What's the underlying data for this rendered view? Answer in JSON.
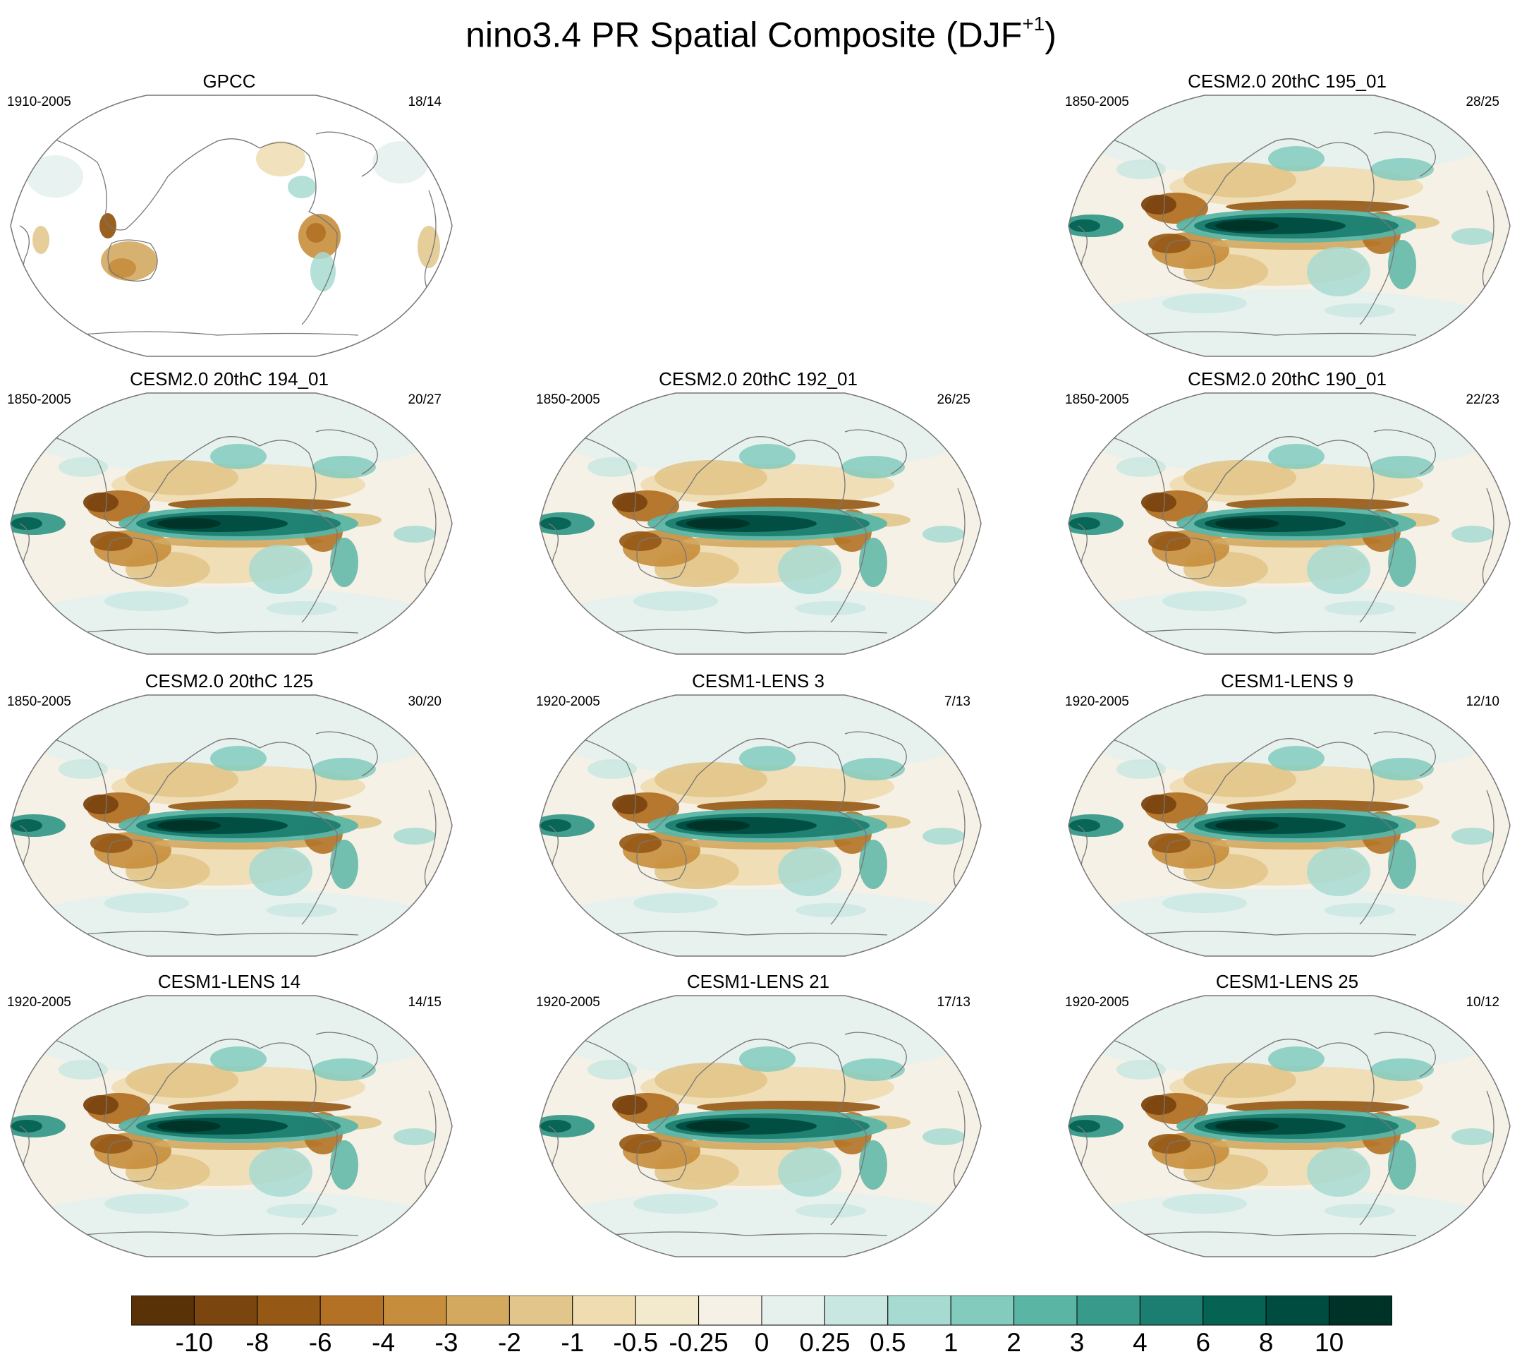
{
  "title": {
    "main": "nino3.4 PR Spatial Composite (DJF",
    "superscript": "+1",
    "close": ")"
  },
  "panels": [
    {
      "title": "GPCC",
      "years": "1910-2005",
      "count": "18/14",
      "observed": true
    },
    {
      "title": "CESM2.0 20thC 195_01",
      "years": "1850-2005",
      "count": "28/25"
    },
    {
      "title": "CESM2.0 20thC 194_01",
      "years": "1850-2005",
      "count": "20/27"
    },
    {
      "title": "CESM2.0 20thC 192_01",
      "years": "1850-2005",
      "count": "26/25"
    },
    {
      "title": "CESM2.0 20thC 190_01",
      "years": "1850-2005",
      "count": "22/23"
    },
    {
      "title": "CESM2.0 20thC 125",
      "years": "1850-2005",
      "count": "30/20"
    },
    {
      "title": "CESM1-LENS 3",
      "years": "1920-2005",
      "count": "7/13"
    },
    {
      "title": "CESM1-LENS 9",
      "years": "1920-2005",
      "count": "12/10"
    },
    {
      "title": "CESM1-LENS 14",
      "years": "1920-2005",
      "count": "14/15"
    },
    {
      "title": "CESM1-LENS 21",
      "years": "1920-2005",
      "count": "17/13"
    },
    {
      "title": "CESM1-LENS 25",
      "years": "1920-2005",
      "count": "10/12"
    }
  ],
  "colorbar": {
    "labels": [
      "-10",
      "-8",
      "-6",
      "-4",
      "-3",
      "-2",
      "-1",
      "-0.5",
      "-0.25",
      "0",
      "0.25",
      "0.5",
      "1",
      "2",
      "3",
      "4",
      "6",
      "8",
      "10"
    ],
    "colors": [
      "#5a3208",
      "#7b4510",
      "#955815",
      "#b27124",
      "#c68e3c",
      "#d3a960",
      "#e2c58a",
      "#efdcb1",
      "#f3e9cd",
      "#f5f1e6",
      "#e6f1ee",
      "#c9e7e1",
      "#a7dbd1",
      "#82cbbd",
      "#5bb5a5",
      "#389a8a",
      "#1c7e70",
      "#056353",
      "#004c40",
      "#003328"
    ]
  },
  "chart_data": {
    "type": "heatmap",
    "variable": "PR",
    "index": "nino3.4",
    "season": "DJF+1",
    "panels": [
      {
        "title": "GPCC",
        "period": "1910-2005",
        "events": "18/14"
      },
      {
        "title": "CESM2.0 20thC 195_01",
        "period": "1850-2005",
        "events": "28/25"
      },
      {
        "title": "CESM2.0 20thC 194_01",
        "period": "1850-2005",
        "events": "20/27"
      },
      {
        "title": "CESM2.0 20thC 192_01",
        "period": "1850-2005",
        "events": "26/25"
      },
      {
        "title": "CESM2.0 20thC 190_01",
        "period": "1850-2005",
        "events": "22/23"
      },
      {
        "title": "CESM2.0 20thC 125",
        "period": "1850-2005",
        "events": "30/20"
      },
      {
        "title": "CESM1-LENS 3",
        "period": "1920-2005",
        "events": "7/13"
      },
      {
        "title": "CESM1-LENS 9",
        "period": "1920-2005",
        "events": "12/10"
      },
      {
        "title": "CESM1-LENS 14",
        "period": "1920-2005",
        "events": "14/15"
      },
      {
        "title": "CESM1-LENS 21",
        "period": "1920-2005",
        "events": "17/13"
      },
      {
        "title": "CESM1-LENS 25",
        "period": "1920-2005",
        "events": "10/12"
      }
    ],
    "contour_levels": [
      -10,
      -8,
      -6,
      -4,
      -3,
      -2,
      -1,
      -0.5,
      -0.25,
      0,
      0.25,
      0.5,
      1,
      2,
      3,
      4,
      6,
      8,
      10
    ],
    "projection": "Robinson (Pacific-centered)",
    "legend": "bottom"
  }
}
